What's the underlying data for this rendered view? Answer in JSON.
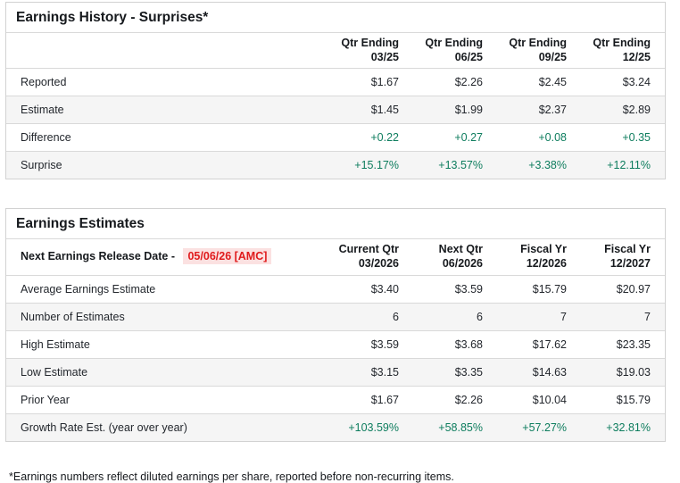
{
  "colors": {
    "positive": "#0e7d5e",
    "alert_red": "#e01a1c",
    "alert_bg": "#fbe1e1"
  },
  "page": {
    "footnote": "*Earnings numbers reflect diluted earnings per share, reported before non-recurring items."
  },
  "surprises_table": {
    "title": "Earnings History - Surprises*",
    "columns": [
      {
        "line1": "Qtr Ending",
        "line2": "03/25"
      },
      {
        "line1": "Qtr Ending",
        "line2": "06/25"
      },
      {
        "line1": "Qtr Ending",
        "line2": "09/25"
      },
      {
        "line1": "Qtr Ending",
        "line2": "12/25"
      }
    ],
    "rows": [
      {
        "label": "Reported",
        "values": [
          "$1.67",
          "$2.26",
          "$2.45",
          "$3.24"
        ],
        "positive": false
      },
      {
        "label": "Estimate",
        "values": [
          "$1.45",
          "$1.99",
          "$2.37",
          "$2.89"
        ],
        "positive": false
      },
      {
        "label": "Difference",
        "values": [
          "+0.22",
          "+0.27",
          "+0.08",
          "+0.35"
        ],
        "positive": true
      },
      {
        "label": "Surprise",
        "values": [
          "+15.17%",
          "+13.57%",
          "+3.38%",
          "+12.11%"
        ],
        "positive": true
      }
    ]
  },
  "estimates_table": {
    "title": "Earnings Estimates",
    "release_label": "Next Earnings Release Date -",
    "release_date": "05/06/26 [AMC]",
    "columns": [
      {
        "line1": "Current Qtr",
        "line2": "03/2026"
      },
      {
        "line1": "Next Qtr",
        "line2": "06/2026"
      },
      {
        "line1": "Fiscal Yr",
        "line2": "12/2026"
      },
      {
        "line1": "Fiscal Yr",
        "line2": "12/2027"
      }
    ],
    "rows": [
      {
        "label": "Average Earnings Estimate",
        "values": [
          "$3.40",
          "$3.59",
          "$15.79",
          "$20.97"
        ],
        "positive": false
      },
      {
        "label": "Number of Estimates",
        "values": [
          "6",
          "6",
          "7",
          "7"
        ],
        "positive": false
      },
      {
        "label": "High Estimate",
        "values": [
          "$3.59",
          "$3.68",
          "$17.62",
          "$23.35"
        ],
        "positive": false
      },
      {
        "label": "Low Estimate",
        "values": [
          "$3.15",
          "$3.35",
          "$14.63",
          "$19.03"
        ],
        "positive": false
      },
      {
        "label": "Prior Year",
        "values": [
          "$1.67",
          "$2.26",
          "$10.04",
          "$15.79"
        ],
        "positive": false
      },
      {
        "label": "Growth Rate Est. (year over year)",
        "values": [
          "+103.59%",
          "+58.85%",
          "+57.27%",
          "+32.81%"
        ],
        "positive": true
      }
    ]
  }
}
